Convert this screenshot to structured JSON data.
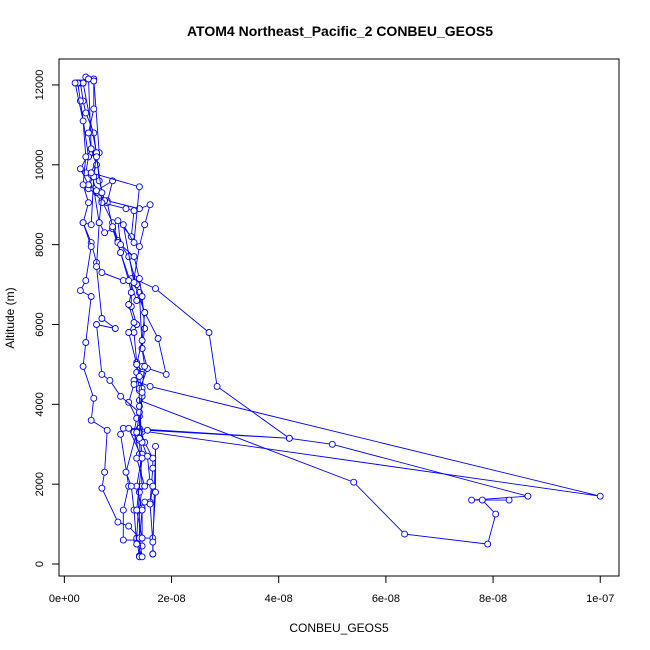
{
  "chart_data": {
    "type": "line",
    "title": "ATOM4 Northeast_Pacific_2 CONBEU_GEOS5",
    "xlabel": "CONBEU_GEOS5",
    "ylabel": "Altitude (m)",
    "xlim": [
      -1e-09,
      1.035e-07
    ],
    "ylim": [
      -300,
      12650
    ],
    "x_ticks": [
      0,
      2e-08,
      4e-08,
      6e-08,
      8e-08,
      1e-07
    ],
    "x_tick_labels": [
      "0e+00",
      "2e-08",
      "4e-08",
      "6e-08",
      "8e-08",
      "1e-07"
    ],
    "y_ticks": [
      0,
      2000,
      4000,
      6000,
      8000,
      10000,
      12000
    ],
    "y_tick_labels": [
      "0",
      "2000",
      "4000",
      "6000",
      "8000",
      "10000",
      "12000"
    ],
    "grid": false,
    "legend": "none",
    "series_color": "#0000ff",
    "series": [
      {
        "name": "",
        "points": [
          [
            2.5e-09,
            12050
          ],
          [
            3.5e-09,
            12050
          ],
          [
            4e-09,
            12200
          ],
          [
            5.5e-09,
            12150
          ],
          [
            6.5e-09,
            10300
          ],
          [
            5e-09,
            9800
          ],
          [
            6e-09,
            9300
          ],
          [
            8e-09,
            9100
          ],
          [
            1.4e-08,
            8900
          ],
          [
            1.6e-08,
            9000
          ],
          [
            1.5e-08,
            8500
          ],
          [
            1.4e-08,
            7950
          ],
          [
            1.3e-08,
            7150
          ],
          [
            1.7e-08,
            6900
          ],
          [
            2.7e-08,
            5800
          ],
          [
            2.85e-08,
            4450
          ],
          [
            4.2e-08,
            3150
          ],
          [
            5e-08,
            3000
          ],
          [
            8.65e-08,
            1700
          ],
          [
            7.6e-08,
            1600
          ],
          [
            8.3e-08,
            1600
          ],
          [
            7.8e-08,
            1600
          ],
          [
            8.05e-08,
            1250
          ],
          [
            7.9e-08,
            500
          ],
          [
            6.35e-08,
            750
          ],
          [
            5.4e-08,
            2050
          ],
          [
            1.4e-08,
            4100
          ],
          [
            1.4e-08,
            3100
          ],
          [
            1.45e-08,
            1950
          ],
          [
            1.4e-08,
            1350
          ],
          [
            1.4e-08,
            650
          ],
          [
            1.4e-08,
            200
          ]
        ]
      },
      {
        "name": "",
        "points": [
          [
            3e-09,
            12050
          ],
          [
            3.5e-09,
            11600
          ],
          [
            4e-09,
            11300
          ],
          [
            5.5e-09,
            10800
          ],
          [
            6e-09,
            10250
          ],
          [
            4.5e-09,
            10200
          ],
          [
            4e-09,
            9800
          ],
          [
            5e-09,
            9750
          ],
          [
            4.5e-09,
            9450
          ],
          [
            7e-09,
            9100
          ],
          [
            9e-09,
            8550
          ],
          [
            1e-08,
            8100
          ],
          [
            1.2e-08,
            7700
          ],
          [
            1.35e-08,
            7000
          ],
          [
            1.5e-08,
            6300
          ],
          [
            1.75e-08,
            5650
          ],
          [
            1.9e-08,
            4750
          ],
          [
            1.45e-08,
            4950
          ],
          [
            1.3e-08,
            4600
          ],
          [
            1.6e-08,
            4450
          ],
          [
            1e-07,
            1700
          ],
          [
            1.1e-08,
            3400
          ],
          [
            1.05e-08,
            3250
          ],
          [
            1.2e-08,
            1950
          ],
          [
            1.1e-08,
            1350
          ],
          [
            1.1e-08,
            600
          ],
          [
            1.35e-08,
            600
          ],
          [
            1.45e-08,
            650
          ],
          [
            1.65e-08,
            650
          ],
          [
            1.7e-08,
            1800
          ],
          [
            1.7e-08,
            2950
          ],
          [
            1.65e-08,
            250
          ]
        ]
      },
      {
        "name": "",
        "points": [
          [
            4.5e-09,
            12150
          ],
          [
            5e-09,
            10400
          ],
          [
            6e-09,
            10000
          ],
          [
            4.5e-09,
            9400
          ],
          [
            5.5e-09,
            9400
          ],
          [
            6.5e-09,
            8550
          ],
          [
            7.5e-09,
            8300
          ],
          [
            9e-09,
            8400
          ],
          [
            1.05e-08,
            7800
          ],
          [
            1.35e-08,
            6600
          ],
          [
            1.4e-08,
            6800
          ],
          [
            1.45e-08,
            5400
          ],
          [
            1.55e-08,
            4900
          ],
          [
            1.4e-08,
            4350
          ],
          [
            1.4e-08,
            3700
          ],
          [
            1.4e-08,
            3400
          ],
          [
            1.5e-08,
            3050
          ],
          [
            1.65e-08,
            2650
          ],
          [
            1.65e-08,
            2400
          ],
          [
            1.6e-08,
            1550
          ],
          [
            1.5e-08,
            1550
          ],
          [
            1.45e-08,
            1400
          ],
          [
            1.45e-08,
            450
          ],
          [
            1.4e-08,
            200
          ]
        ]
      },
      {
        "name": "",
        "points": [
          [
            3.5e-09,
            12050
          ],
          [
            6e-09,
            10300
          ],
          [
            5.5e-09,
            9700
          ],
          [
            5e-09,
            8500
          ],
          [
            3.5e-09,
            8550
          ],
          [
            5e-09,
            8050
          ],
          [
            6e-09,
            7550
          ],
          [
            7e-09,
            7300
          ],
          [
            1.1e-08,
            7100
          ],
          [
            1.25e-08,
            7150
          ],
          [
            1.25e-08,
            6450
          ],
          [
            1.35e-08,
            6000
          ],
          [
            1.3e-08,
            5800
          ],
          [
            1.35e-08,
            5050
          ],
          [
            1.45e-08,
            4750
          ],
          [
            1.3e-08,
            4500
          ],
          [
            1.2e-08,
            4050
          ],
          [
            1.35e-08,
            3650
          ],
          [
            1.3e-08,
            3300
          ],
          [
            1.4e-08,
            2750
          ],
          [
            1.35e-08,
            2650
          ],
          [
            1.5e-08,
            1950
          ],
          [
            1.4e-08,
            1800
          ],
          [
            1.35e-08,
            650
          ],
          [
            1.4e-08,
            180
          ]
        ]
      },
      {
        "name": "",
        "points": [
          [
            5.5e-09,
            12100
          ],
          [
            5.5e-09,
            11400
          ],
          [
            4.5e-09,
            10800
          ],
          [
            5e-09,
            10400
          ],
          [
            3e-09,
            9900
          ],
          [
            4.5e-09,
            9500
          ],
          [
            6e-09,
            9350
          ],
          [
            9e-09,
            9600
          ],
          [
            8e-09,
            9050
          ],
          [
            9e-09,
            8450
          ],
          [
            1e-08,
            8050
          ],
          [
            1.05e-08,
            7800
          ],
          [
            1.2e-08,
            7100
          ],
          [
            1.25e-08,
            6800
          ],
          [
            1.2e-08,
            6500
          ],
          [
            1.3e-08,
            6050
          ],
          [
            1.2e-08,
            5800
          ],
          [
            1.35e-08,
            5000
          ],
          [
            1.35e-08,
            4800
          ],
          [
            1.4e-08,
            4400
          ],
          [
            1.45e-08,
            4200
          ],
          [
            1.4e-08,
            3300
          ],
          [
            1.45e-08,
            2750
          ],
          [
            1.35e-08,
            1950
          ],
          [
            1.45e-08,
            1350
          ],
          [
            1.4e-08,
            650
          ],
          [
            1.45e-08,
            180
          ]
        ]
      },
      {
        "name": "",
        "points": [
          [
            2.5e-09,
            12050
          ],
          [
            3e-09,
            11600
          ],
          [
            4.5e-09,
            10200
          ],
          [
            6e-09,
            10300
          ],
          [
            6.5e-09,
            9600
          ],
          [
            7.5e-09,
            9100
          ],
          [
            7e-09,
            9050
          ],
          [
            1.15e-08,
            8900
          ],
          [
            1.3e-08,
            8850
          ],
          [
            1.25e-08,
            8200
          ],
          [
            1e-08,
            8600
          ],
          [
            1.05e-08,
            8000
          ],
          [
            1.3e-08,
            7700
          ],
          [
            1.4e-08,
            7150
          ],
          [
            1.45e-08,
            6700
          ],
          [
            1.5e-08,
            5900
          ],
          [
            1.45e-08,
            5400
          ],
          [
            1.5e-08,
            4950
          ],
          [
            1.45e-08,
            4400
          ],
          [
            1.45e-08,
            4200
          ],
          [
            1.4e-08,
            3950
          ],
          [
            1.45e-08,
            3050
          ],
          [
            1.55e-08,
            2700
          ],
          [
            1.6e-08,
            2050
          ],
          [
            1.65e-08,
            1950
          ],
          [
            1.6e-08,
            1500
          ],
          [
            1.65e-08,
            550
          ],
          [
            1.65e-08,
            250
          ]
        ]
      },
      {
        "name": "",
        "points": [
          [
            2e-09,
            12050
          ],
          [
            3.5e-09,
            11100
          ],
          [
            4e-09,
            10200
          ],
          [
            3.5e-09,
            9500
          ],
          [
            4.5e-09,
            9050
          ],
          [
            3.5e-09,
            8550
          ],
          [
            5e-09,
            7950
          ],
          [
            4e-09,
            7100
          ],
          [
            3e-09,
            6850
          ],
          [
            5e-09,
            6700
          ],
          [
            4e-09,
            5550
          ],
          [
            3.5e-09,
            4950
          ],
          [
            5.5e-09,
            4150
          ],
          [
            5e-09,
            3600
          ],
          [
            8e-09,
            3350
          ],
          [
            7.5e-09,
            2300
          ],
          [
            7e-09,
            1900
          ],
          [
            1e-08,
            1050
          ],
          [
            1.2e-08,
            950
          ],
          [
            1.4e-08,
            650
          ]
        ]
      },
      {
        "name": "",
        "points": [
          [
            6e-09,
            10200
          ],
          [
            7e-09,
            9300
          ],
          [
            6.5e-09,
            8550
          ],
          [
            6e-09,
            7450
          ],
          [
            7e-09,
            6150
          ],
          [
            9.5e-09,
            5900
          ],
          [
            6e-09,
            6000
          ],
          [
            7e-09,
            4750
          ],
          [
            8.5e-09,
            4600
          ],
          [
            1.05e-08,
            4200
          ],
          [
            1.4e-08,
            3800
          ],
          [
            1.35e-08,
            3300
          ],
          [
            1.15e-08,
            2300
          ],
          [
            1.25e-08,
            1950
          ],
          [
            1.3e-08,
            1350
          ],
          [
            1.35e-08,
            500
          ]
        ]
      },
      {
        "name": "",
        "points": [
          [
            5e-09,
            9800
          ],
          [
            1.4e-08,
            9450
          ],
          [
            1.3e-08,
            8050
          ],
          [
            1.1e-08,
            8500
          ],
          [
            1.3e-08,
            7050
          ],
          [
            1.5e-08,
            6300
          ],
          [
            1.45e-08,
            5600
          ],
          [
            1.35e-08,
            5000
          ],
          [
            1.4e-08,
            4700
          ],
          [
            1.45e-08,
            4300
          ],
          [
            1.4e-08,
            3150
          ],
          [
            1.55e-08,
            3350
          ],
          [
            4.2e-08,
            3150
          ],
          [
            1.2e-08,
            3400
          ],
          [
            1.45e-08,
            2650
          ],
          [
            1.35e-08,
            1350
          ],
          [
            1.45e-08,
            650
          ]
        ]
      }
    ]
  }
}
